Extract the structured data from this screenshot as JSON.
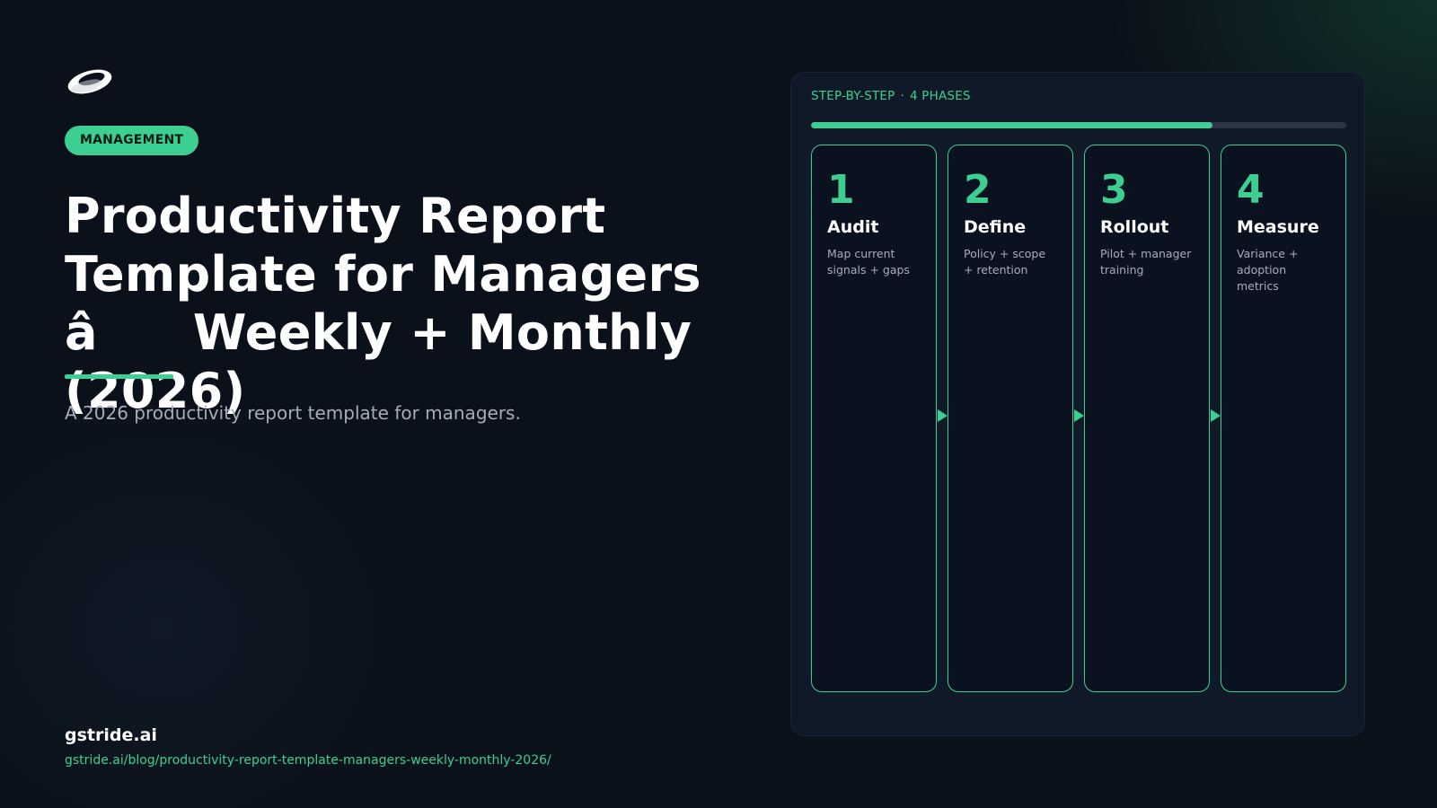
{
  "header": {
    "category_tag": "MANAGEMENT",
    "title": "Productivity Report Template for Managers â Weekly + Monthly (2026)",
    "subtitle": "A 2026 productivity report template for managers."
  },
  "footer": {
    "brand": "gstride.ai",
    "url": "gstride.ai/blog/productivity-report-template-managers-weekly-monthly-2026/"
  },
  "panel": {
    "label": "STEP-BY-STEP",
    "separator": "·",
    "phase_count": "4 PHASES",
    "progress_fraction": 0.75,
    "phases": [
      {
        "number": "1",
        "title": "Audit",
        "desc": "Map current signals + gaps"
      },
      {
        "number": "2",
        "title": "Define",
        "desc": "Policy + scope + retention"
      },
      {
        "number": "3",
        "title": "Rollout",
        "desc": "Pilot + manager training"
      },
      {
        "number": "4",
        "title": "Measure",
        "desc": "Variance + adoption metrics"
      }
    ]
  },
  "colors": {
    "accent": "#3ccf91",
    "background": "#0b111b",
    "panel": "#101928",
    "muted_text": "#a5adbb"
  },
  "icons": {
    "logo": "swoosh-ring-logo-icon",
    "flow": "arrow-right-icon"
  }
}
